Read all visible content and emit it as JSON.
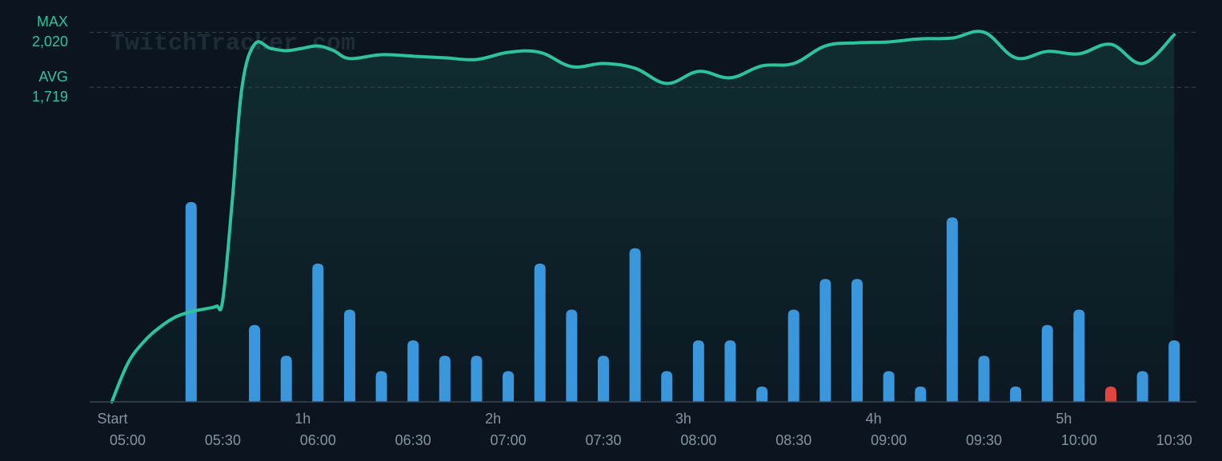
{
  "chart_data": {
    "type": "line",
    "watermark": "TwitchTracker.com",
    "xlim": [
      "04:48",
      "10:37"
    ],
    "ylim": [
      0,
      2100
    ],
    "y2lim": [
      0,
      25
    ],
    "xticks": [
      "05:00",
      "05:30",
      "06:00",
      "06:30",
      "07:00",
      "07:30",
      "08:00",
      "08:30",
      "09:00",
      "09:30",
      "10:00",
      "10:30"
    ],
    "xticks_elapsed": [
      {
        "value": "05:00",
        "label": "Start"
      },
      {
        "value": "06:00",
        "label": "1h"
      },
      {
        "value": "07:00",
        "label": "2h"
      },
      {
        "value": "08:00",
        "label": "3h"
      },
      {
        "value": "09:00",
        "label": "4h"
      },
      {
        "value": "10:00",
        "label": "5h"
      }
    ],
    "reference_lines": [
      {
        "name": "MAX",
        "value": 2020,
        "label": "2,020"
      },
      {
        "name": "AVG",
        "value": 1719,
        "label": "1,719"
      }
    ],
    "reference_color": "#2fc39c",
    "series": [
      {
        "type": "bar",
        "axis": "y2",
        "color": "#3a97dc",
        "x": [
          "05:20",
          "05:40",
          "05:50",
          "06:00",
          "06:10",
          "06:20",
          "06:30",
          "06:40",
          "06:50",
          "07:00",
          "07:10",
          "07:20",
          "07:30",
          "07:40",
          "07:50",
          "08:00",
          "08:10",
          "08:20",
          "08:30",
          "08:40",
          "08:50",
          "09:00",
          "09:10",
          "09:20",
          "09:30",
          "09:40",
          "09:50",
          "10:00",
          "10:10",
          "10:20",
          "10:30"
        ],
        "values": [
          13,
          5,
          3,
          9,
          6,
          2,
          4,
          3,
          3,
          2,
          9,
          6,
          3,
          10,
          2,
          4,
          4,
          1,
          6,
          8,
          8,
          2,
          1,
          12,
          3,
          1,
          5,
          6,
          1,
          2,
          4
        ],
        "colors": [
          "#3a97dc",
          "#3a97dc",
          "#3a97dc",
          "#3a97dc",
          "#3a97dc",
          "#3a97dc",
          "#3a97dc",
          "#3a97dc",
          "#3a97dc",
          "#3a97dc",
          "#3a97dc",
          "#3a97dc",
          "#3a97dc",
          "#3a97dc",
          "#3a97dc",
          "#3a97dc",
          "#3a97dc",
          "#3a97dc",
          "#3a97dc",
          "#3a97dc",
          "#3a97dc",
          "#3a97dc",
          "#3a97dc",
          "#3a97dc",
          "#3a97dc",
          "#3a97dc",
          "#3a97dc",
          "#3a97dc",
          "#e0463f",
          "#3a97dc",
          "#3a97dc"
        ]
      },
      {
        "type": "line",
        "color": "#2fc39c",
        "x": [
          "04:55",
          "05:00",
          "05:05",
          "05:10",
          "05:15",
          "05:20",
          "05:25",
          "05:28",
          "05:30",
          "05:33",
          "05:36",
          "05:40",
          "05:45",
          "05:50",
          "05:55",
          "06:00",
          "06:05",
          "06:10",
          "06:20",
          "06:30",
          "06:40",
          "06:50",
          "07:00",
          "07:10",
          "07:20",
          "07:30",
          "07:40",
          "07:50",
          "08:00",
          "08:10",
          "08:20",
          "08:30",
          "08:40",
          "08:50",
          "09:00",
          "09:10",
          "09:20",
          "09:30",
          "09:40",
          "09:50",
          "10:00",
          "10:10",
          "10:20",
          "10:30"
        ],
        "values": [
          0,
          209,
          327,
          406,
          463,
          493,
          510,
          523,
          558,
          1104,
          1714,
          1954,
          1932,
          1919,
          1932,
          1945,
          1919,
          1876,
          1897,
          1889,
          1880,
          1871,
          1910,
          1910,
          1832,
          1849,
          1823,
          1740,
          1806,
          1771,
          1836,
          1849,
          1945,
          1962,
          1967,
          1984,
          1988,
          2020,
          1880,
          1915,
          1902,
          1954,
          1849,
          2006
        ]
      }
    ]
  }
}
